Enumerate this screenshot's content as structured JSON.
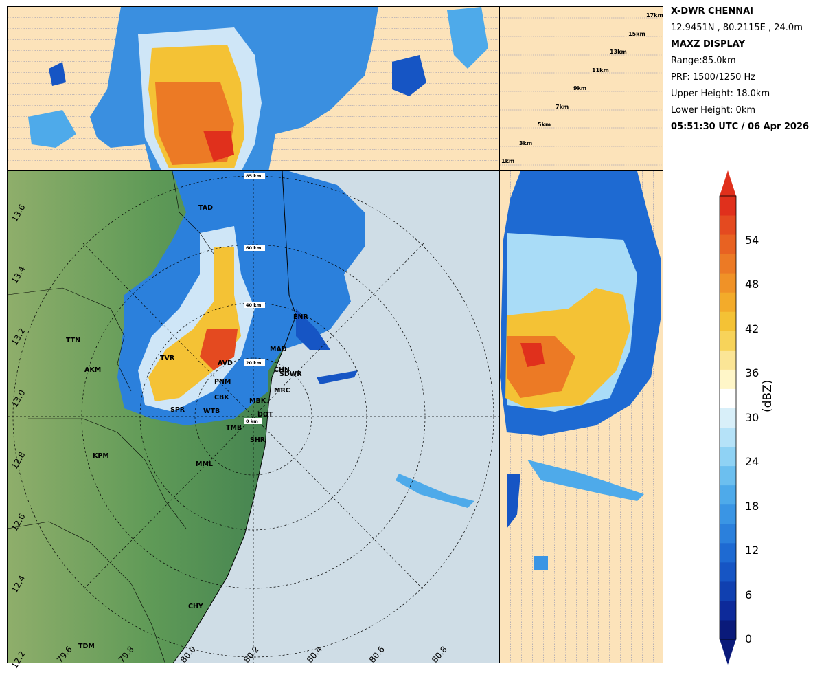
{
  "header": {
    "radar_name": "X-DWR CHENNAI",
    "location": "12.9451N , 80.2115E , 24.0m",
    "display_type": "MAXZ DISPLAY",
    "range": "Range:85.0km",
    "prf": "PRF: 1500/1250 Hz",
    "upper_height": "Upper Height: 18.0km",
    "lower_height": "Lower Height: 0km",
    "timestamp": "05:51:30 UTC / 06 Apr 2026"
  },
  "height_labels": [
    "1km",
    "3km",
    "5km",
    "7km",
    "9km",
    "11km",
    "13km",
    "15km",
    "17km"
  ],
  "range_ring_labels": [
    "0 km",
    "20 km",
    "40 km",
    "60 km",
    "85 km"
  ],
  "stations": [
    "TAD",
    "ENR",
    "TTN",
    "TVR",
    "AVD",
    "MAD",
    "AKM",
    "CHN",
    "SDWR",
    "PNM",
    "MRC",
    "CBK",
    "MBK",
    "SPR",
    "WTB",
    "DOT",
    "TMB",
    "SHR",
    "KPM",
    "MML",
    "CHY",
    "TDM"
  ],
  "lat_ticks": [
    "13.6",
    "13.4",
    "13.2",
    "13.0",
    "12.8",
    "12.6",
    "12.4",
    "12.2"
  ],
  "lon_ticks": [
    "79.6",
    "79.8",
    "80.0",
    "80.2",
    "80.4",
    "80.6",
    "80.8"
  ],
  "colorbar": {
    "label": "(dBZ)",
    "ticks": [
      "0",
      "6",
      "12",
      "18",
      "24",
      "30",
      "36",
      "42",
      "48",
      "54"
    ],
    "range": [
      0,
      60
    ],
    "colors": [
      "#0a1a7a",
      "#0d2a9a",
      "#1040b0",
      "#1655c4",
      "#1e6ad2",
      "#2b80dc",
      "#3a95e4",
      "#4eaaea",
      "#6cbfef",
      "#8fd2f4",
      "#b5e2f8",
      "#d8eff9",
      "#ffffff",
      "#fff6c8",
      "#fbe596",
      "#f7d35a",
      "#f4c235",
      "#f3ab2a",
      "#f09227",
      "#ec7a25",
      "#e86222",
      "#e44a20",
      "#e0301c"
    ]
  }
}
